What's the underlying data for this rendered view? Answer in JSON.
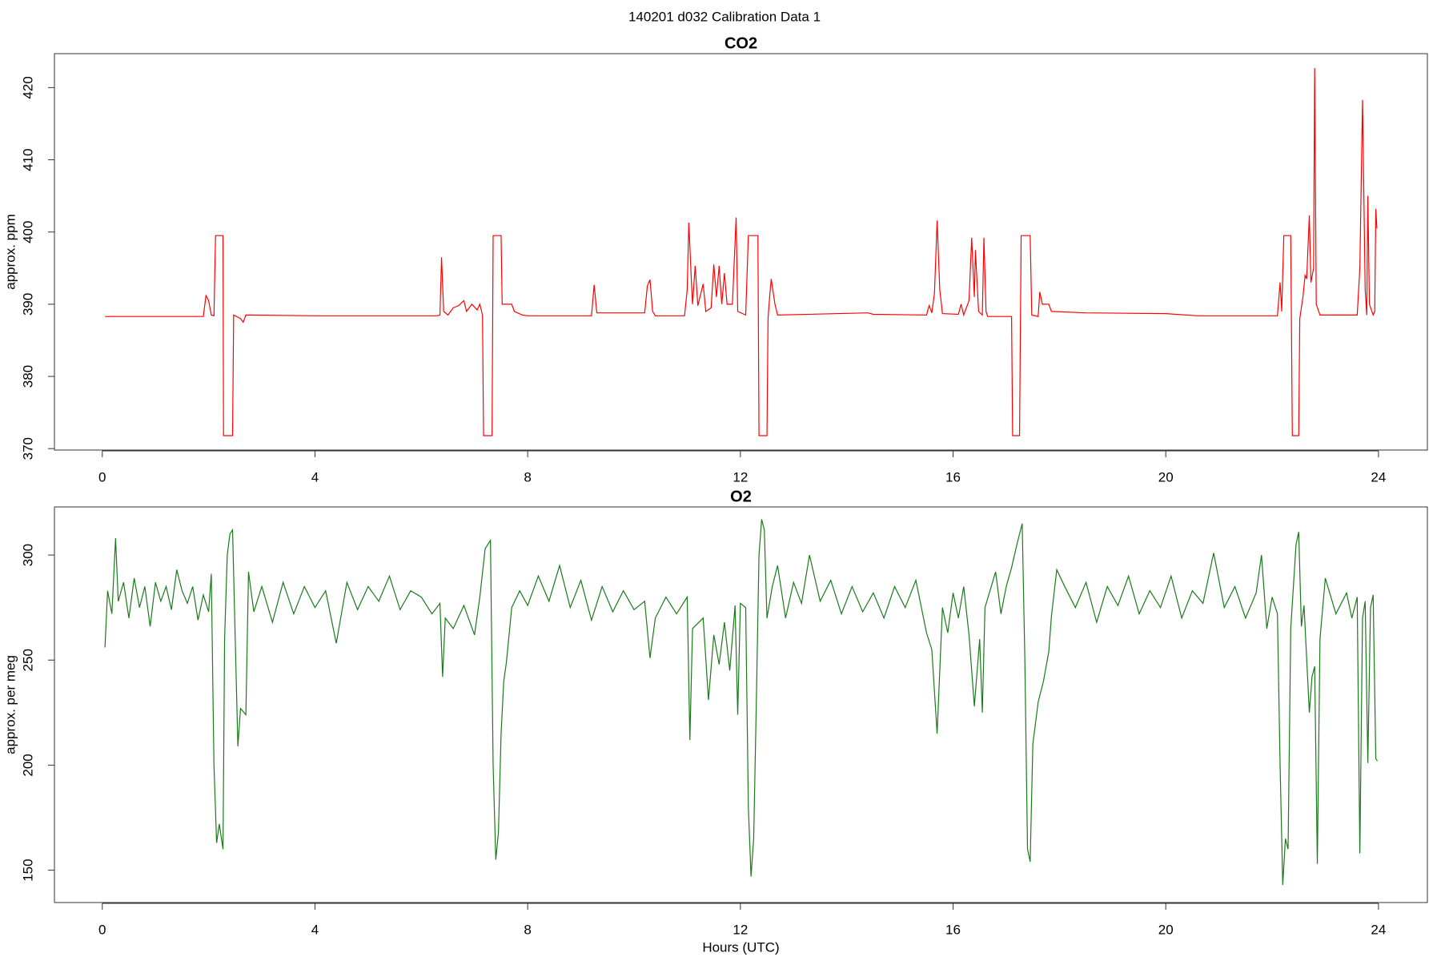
{
  "title": "140201   d032   Calibration Data 1",
  "chart_data": [
    {
      "type": "line",
      "title": "CO2",
      "ylabel": "approx. ppm",
      "xlim": [
        -0.9,
        24.92
      ],
      "xticks": [
        0,
        4,
        8,
        12,
        16,
        20,
        24
      ],
      "ylim": [
        369.8,
        424.7
      ],
      "yticks": [
        370,
        380,
        390,
        400,
        410,
        420
      ],
      "x": [
        0.05,
        1.9,
        1.95,
        2.0,
        2.05,
        2.1,
        2.13,
        2.27,
        2.28,
        2.45,
        2.47,
        2.6,
        2.65,
        2.7,
        4,
        6.3,
        6.35,
        6.38,
        6.42,
        6.5,
        6.6,
        6.7,
        6.8,
        6.85,
        6.95,
        7.05,
        7.1,
        7.15,
        7.17,
        7.33,
        7.35,
        7.5,
        7.52,
        7.7,
        7.75,
        7.9,
        8,
        9.2,
        9.25,
        9.3,
        10.2,
        10.25,
        10.3,
        10.35,
        10.4,
        10.95,
        11.0,
        11.03,
        11.08,
        11.1,
        11.15,
        11.2,
        11.3,
        11.35,
        11.45,
        11.5,
        11.55,
        11.6,
        11.65,
        11.7,
        11.75,
        11.85,
        11.92,
        11.95,
        12.1,
        12.15,
        12.33,
        12.35,
        12.5,
        12.52,
        12.55,
        12.58,
        12.65,
        12.7,
        14.4,
        14.5,
        15.5,
        15.55,
        15.6,
        15.65,
        15.7,
        15.75,
        15.8,
        16.1,
        16.15,
        16.2,
        16.3,
        16.35,
        16.4,
        16.42,
        16.48,
        16.55,
        16.58,
        16.62,
        16.65,
        17.1,
        17.12,
        17.25,
        17.28,
        17.45,
        17.48,
        17.6,
        17.63,
        17.68,
        17.8,
        17.85,
        18.5,
        20,
        20.6,
        22.1,
        22.15,
        22.18,
        22.22,
        22.35,
        22.38,
        22.5,
        22.52,
        22.58,
        22.62,
        22.65,
        22.7,
        22.73,
        22.78,
        22.8,
        22.83,
        22.9,
        23.6,
        23.65,
        23.7,
        23.75,
        23.78,
        23.8,
        23.83,
        23.9,
        23.93,
        23.95,
        23.97
      ],
      "series": [
        {
          "name": "CO2",
          "color": "#ff0000",
          "values": [
            388.3,
            388.3,
            391.2,
            390.5,
            388.5,
            388.4,
            399.5,
            399.5,
            371.8,
            371.8,
            388.5,
            388,
            387.5,
            388.5,
            388.4,
            388.4,
            388.5,
            396.5,
            389,
            388.5,
            389.5,
            389.8,
            390.5,
            389,
            390,
            389.2,
            390,
            388.5,
            371.8,
            371.8,
            399.5,
            399.5,
            390,
            390,
            389,
            388.5,
            388.4,
            388.4,
            392.7,
            388.8,
            388.8,
            392.5,
            393.4,
            389,
            388.4,
            388.4,
            392,
            401.3,
            393,
            390,
            395.3,
            389.8,
            392.8,
            389,
            389.5,
            395.5,
            391,
            395.3,
            390,
            394.3,
            390,
            390,
            402,
            389,
            388.5,
            399.5,
            399.5,
            371.8,
            371.8,
            388,
            391,
            393.5,
            390,
            388.5,
            388.8,
            388.6,
            388.5,
            389.8,
            388.8,
            391.5,
            401.6,
            392,
            388.7,
            388.6,
            390,
            388.5,
            390.5,
            399.2,
            391,
            397.5,
            389,
            388.5,
            399.2,
            389,
            388.3,
            388.3,
            371.8,
            371.8,
            399.5,
            399.5,
            388.5,
            388.3,
            391.7,
            390,
            390,
            389,
            388.8,
            388.7,
            388.4,
            388.4,
            393,
            389,
            399.5,
            399.5,
            371.8,
            371.8,
            388,
            391,
            394,
            393.5,
            402.3,
            393,
            395,
            422.7,
            390,
            388.5,
            388.5,
            395,
            418.3,
            392,
            388.5,
            405,
            390,
            388.5,
            389,
            403.2,
            400.5
          ]
        }
      ]
    },
    {
      "type": "line",
      "title": "O2",
      "ylabel": "approx. per meg",
      "xlabel": "Hours (UTC)",
      "xlim": [
        -0.9,
        24.92
      ],
      "xticks": [
        0,
        4,
        8,
        12,
        16,
        20,
        24
      ],
      "ylim": [
        134.6,
        322.9
      ],
      "yticks": [
        150,
        200,
        250,
        300
      ],
      "x": [
        0.05,
        0.1,
        0.18,
        0.25,
        0.3,
        0.4,
        0.5,
        0.6,
        0.7,
        0.8,
        0.9,
        1.0,
        1.1,
        1.2,
        1.3,
        1.4,
        1.5,
        1.6,
        1.7,
        1.8,
        1.9,
        2.0,
        2.05,
        2.1,
        2.15,
        2.2,
        2.27,
        2.3,
        2.35,
        2.4,
        2.45,
        2.5,
        2.55,
        2.6,
        2.7,
        2.75,
        2.85,
        3.0,
        3.2,
        3.4,
        3.6,
        3.8,
        4.0,
        4.2,
        4.4,
        4.6,
        4.8,
        5.0,
        5.2,
        5.4,
        5.6,
        5.8,
        6.0,
        6.2,
        6.35,
        6.4,
        6.45,
        6.6,
        6.8,
        7.0,
        7.1,
        7.2,
        7.3,
        7.35,
        7.4,
        7.45,
        7.5,
        7.55,
        7.6,
        7.7,
        7.85,
        8.0,
        8.2,
        8.4,
        8.6,
        8.8,
        9.0,
        9.2,
        9.4,
        9.6,
        9.8,
        10.0,
        10.2,
        10.3,
        10.4,
        10.6,
        10.8,
        11.0,
        11.05,
        11.1,
        11.3,
        11.4,
        11.5,
        11.6,
        11.7,
        11.8,
        11.9,
        11.95,
        12.0,
        12.1,
        12.15,
        12.2,
        12.25,
        12.3,
        12.35,
        12.4,
        12.45,
        12.5,
        12.6,
        12.7,
        12.85,
        13.0,
        13.15,
        13.3,
        13.5,
        13.7,
        13.9,
        14.1,
        14.3,
        14.5,
        14.7,
        14.9,
        15.1,
        15.3,
        15.5,
        15.6,
        15.7,
        15.8,
        15.9,
        16.0,
        16.1,
        16.2,
        16.3,
        16.4,
        16.5,
        16.55,
        16.6,
        16.8,
        16.9,
        17.0,
        17.1,
        17.2,
        17.3,
        17.35,
        17.4,
        17.45,
        17.5,
        17.6,
        17.7,
        17.8,
        17.85,
        17.95,
        18.1,
        18.3,
        18.5,
        18.7,
        18.9,
        19.1,
        19.3,
        19.5,
        19.7,
        19.9,
        20.1,
        20.3,
        20.5,
        20.7,
        20.9,
        21.1,
        21.3,
        21.5,
        21.7,
        21.8,
        21.9,
        22.0,
        22.1,
        22.15,
        22.2,
        22.25,
        22.3,
        22.35,
        22.45,
        22.5,
        22.55,
        22.6,
        22.7,
        22.75,
        22.8,
        22.85,
        22.9,
        23.0,
        23.2,
        23.4,
        23.5,
        23.6,
        23.65,
        23.7,
        23.75,
        23.8,
        23.85,
        23.9,
        23.95,
        23.98
      ],
      "series": [
        {
          "name": "O2",
          "color": "#1a7a1a",
          "values": [
            256,
            283,
            272,
            308,
            278,
            287,
            270,
            289,
            275,
            285,
            266,
            287,
            278,
            285,
            274,
            293,
            283,
            277,
            285,
            269,
            281,
            273,
            291,
            200,
            163,
            172,
            160,
            260,
            300,
            310,
            312,
            260,
            209,
            227,
            224,
            292,
            273,
            285,
            268,
            287,
            272,
            285,
            275,
            283,
            258,
            287,
            274,
            285,
            278,
            290,
            274,
            283,
            280,
            272,
            277,
            242,
            270,
            265,
            276,
            262,
            280,
            303,
            307,
            200,
            155,
            168,
            215,
            240,
            249,
            275,
            283,
            276,
            290,
            278,
            295,
            275,
            288,
            269,
            285,
            273,
            283,
            274,
            278,
            251,
            270,
            280,
            272,
            280,
            212,
            265,
            270,
            231,
            262,
            248,
            268,
            245,
            276,
            224,
            277,
            275,
            180,
            147,
            165,
            230,
            300,
            317,
            312,
            270,
            285,
            295,
            270,
            287,
            277,
            300,
            278,
            288,
            272,
            285,
            273,
            282,
            270,
            285,
            275,
            288,
            263,
            255,
            215,
            275,
            263,
            282,
            270,
            285,
            262,
            228,
            260,
            225,
            275,
            292,
            272,
            285,
            294,
            305,
            315,
            250,
            160,
            154,
            210,
            230,
            240,
            254,
            271,
            293,
            285,
            275,
            287,
            268,
            285,
            276,
            290,
            272,
            283,
            275,
            290,
            270,
            283,
            277,
            301,
            275,
            285,
            270,
            282,
            300,
            265,
            280,
            272,
            200,
            143,
            165,
            160,
            265,
            305,
            311,
            266,
            276,
            225,
            242,
            247,
            153,
            260,
            289,
            272,
            282,
            270,
            280,
            158,
            270,
            278,
            201,
            275,
            281,
            203,
            202
          ]
        }
      ]
    }
  ]
}
